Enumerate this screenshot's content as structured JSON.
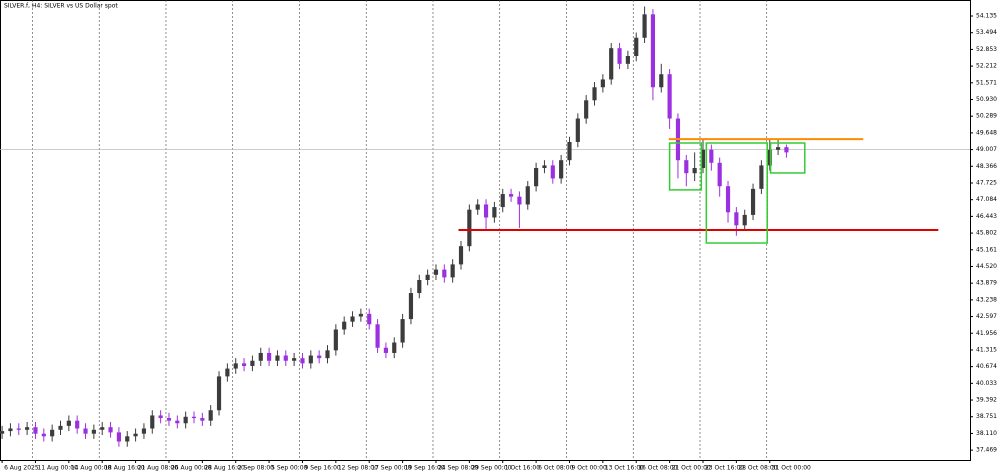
{
  "chart_data": {
    "type": "candlestick",
    "title": "SILVER.f, H4:  SILVER vs US Dollar spot",
    "bull_color": "#3c3c3c",
    "bear_color": "#9b30e0",
    "xlim": [
      -0.25,
      116
    ],
    "ylim": [
      37.09,
      54.75
    ],
    "xticks": [
      {
        "value": 0,
        "label": "6 Aug 2025"
      },
      {
        "value": 4,
        "label": "11 Aug 00:00"
      },
      {
        "value": 8,
        "label": "14 Aug 00:00"
      },
      {
        "value": 12,
        "label": "18 Aug 16:00"
      },
      {
        "value": 16,
        "label": "21 Aug 08:00"
      },
      {
        "value": 20,
        "label": "26 Aug 00:00"
      },
      {
        "value": 24,
        "label": "28 Aug 16:00"
      },
      {
        "value": 28,
        "label": "2 Sep 08:00"
      },
      {
        "value": 32,
        "label": "5 Sep 00:00"
      },
      {
        "value": 36,
        "label": "9 Sep 16:00"
      },
      {
        "value": 40,
        "label": "12 Sep 08:00"
      },
      {
        "value": 44,
        "label": "17 Sep 00:00"
      },
      {
        "value": 48,
        "label": "19 Sep 16:00"
      },
      {
        "value": 52,
        "label": "24 Sep 08:00"
      },
      {
        "value": 56,
        "label": "29 Sep 00:00"
      },
      {
        "value": 60,
        "label": "1 Oct 16:00"
      },
      {
        "value": 64,
        "label": "6 Oct 08:00"
      },
      {
        "value": 68,
        "label": "9 Oct 00:00"
      },
      {
        "value": 72,
        "label": "13 Oct 16:00"
      },
      {
        "value": 76,
        "label": "16 Oct 08:00"
      },
      {
        "value": 80,
        "label": "21 Oct 00:00"
      },
      {
        "value": 84,
        "label": "23 Oct 16:00"
      },
      {
        "value": 88,
        "label": "28 Oct 08:00"
      },
      {
        "value": 92,
        "label": "31 Oct 00:00"
      }
    ],
    "yticks": [
      54.135,
      53.494,
      52.853,
      52.212,
      51.571,
      {
        "value": 50.93,
        "label": "50.930"
      },
      50.289,
      49.648,
      49.007,
      48.366,
      47.725,
      47.084,
      46.443,
      45.802,
      45.161,
      {
        "value": 44.52,
        "label": "44.520"
      },
      43.879,
      43.238,
      42.597,
      41.956,
      41.315,
      40.674,
      40.033,
      39.392,
      38.751,
      {
        "value": 38.11,
        "label": "38.110"
      },
      37.469
    ],
    "bid_line": 49.007,
    "open": [
      38.1,
      38.2,
      38.3,
      38.25,
      38.35,
      38.1,
      38.0,
      38.25,
      38.4,
      38.6,
      38.3,
      38.1,
      38.25,
      38.35,
      38.15,
      37.8,
      38.0,
      38.1,
      38.3,
      38.8,
      38.7,
      38.6,
      38.5,
      38.75,
      38.7,
      38.6,
      39.0,
      40.3,
      40.6,
      40.8,
      40.7,
      40.9,
      41.2,
      40.9,
      41.1,
      40.9,
      41.0,
      40.8,
      41.1,
      41.0,
      41.3,
      42.1,
      42.4,
      42.6,
      42.7,
      42.3,
      41.4,
      41.2,
      41.6,
      42.5,
      43.5,
      44.0,
      44.2,
      44.4,
      44.1,
      44.6,
      45.3,
      46.7,
      46.9,
      46.4,
      46.8,
      47.3,
      47.2,
      46.9,
      47.6,
      48.3,
      48.4,
      47.9,
      48.6,
      49.3,
      50.2,
      50.9,
      51.4,
      51.7,
      52.9,
      52.3,
      52.6,
      53.3,
      54.2,
      51.4,
      51.9,
      50.2,
      48.6,
      48.1,
      48.3,
      49.0,
      48.5,
      47.6,
      46.6,
      46.1,
      46.5,
      47.5,
      48.4,
      49.0,
      49.1
    ],
    "high": [
      38.4,
      38.5,
      38.5,
      38.55,
      38.55,
      38.3,
      38.45,
      38.6,
      38.8,
      38.8,
      38.5,
      38.45,
      38.55,
      38.55,
      38.35,
      38.2,
      38.3,
      38.5,
      39.0,
      39.0,
      38.9,
      38.8,
      38.95,
      38.95,
      38.9,
      39.2,
      40.5,
      40.8,
      41.0,
      41.0,
      41.1,
      41.4,
      41.4,
      41.3,
      41.3,
      41.2,
      41.2,
      41.3,
      41.3,
      41.5,
      42.3,
      42.6,
      42.8,
      42.9,
      42.9,
      42.5,
      41.6,
      41.8,
      42.7,
      43.7,
      44.2,
      44.4,
      44.6,
      44.6,
      44.8,
      45.5,
      46.9,
      47.1,
      47.1,
      47.0,
      47.5,
      47.5,
      47.4,
      47.8,
      48.5,
      48.6,
      48.6,
      48.8,
      49.5,
      50.4,
      51.1,
      51.6,
      51.9,
      53.1,
      53.1,
      52.8,
      53.5,
      54.5,
      54.4,
      52.3,
      52.1,
      50.4,
      48.8,
      48.9,
      49.4,
      49.2,
      48.7,
      47.8,
      46.8,
      46.7,
      47.7,
      48.6,
      49.4,
      49.4,
      49.2
    ],
    "low": [
      37.9,
      38.0,
      38.05,
      38.05,
      37.9,
      37.8,
      37.8,
      38.05,
      38.2,
      38.1,
      37.9,
      37.9,
      38.05,
      37.95,
      37.6,
      37.6,
      37.8,
      37.9,
      38.1,
      38.5,
      38.4,
      38.3,
      38.3,
      38.5,
      38.4,
      38.4,
      38.8,
      40.1,
      40.4,
      40.5,
      40.5,
      40.7,
      40.7,
      40.7,
      40.7,
      40.7,
      40.6,
      40.6,
      40.8,
      40.8,
      41.1,
      41.9,
      42.2,
      42.4,
      42.1,
      41.2,
      41.0,
      41.0,
      41.4,
      42.3,
      43.3,
      43.8,
      44.0,
      43.9,
      43.9,
      44.4,
      45.1,
      46.5,
      45.9,
      46.2,
      46.6,
      47.0,
      46.0,
      46.7,
      47.4,
      48.1,
      47.7,
      47.7,
      48.4,
      49.1,
      50.0,
      50.7,
      51.2,
      51.5,
      52.1,
      52.1,
      52.4,
      53.1,
      50.9,
      51.2,
      49.8,
      47.9,
      47.6,
      47.8,
      48.1,
      48.2,
      47.2,
      46.2,
      45.7,
      45.9,
      46.3,
      47.3,
      48.2,
      48.8,
      48.7
    ],
    "close": [
      38.2,
      38.3,
      38.25,
      38.35,
      38.1,
      38.0,
      38.25,
      38.4,
      38.6,
      38.3,
      38.1,
      38.25,
      38.35,
      38.15,
      37.8,
      38.0,
      38.1,
      38.3,
      38.8,
      38.7,
      38.6,
      38.5,
      38.75,
      38.7,
      38.6,
      39.0,
      40.3,
      40.6,
      40.8,
      40.7,
      40.9,
      41.2,
      40.9,
      41.1,
      40.9,
      41.0,
      40.8,
      41.1,
      41.0,
      41.3,
      42.1,
      42.4,
      42.6,
      42.7,
      42.3,
      41.4,
      41.2,
      41.6,
      42.5,
      43.5,
      44.0,
      44.2,
      44.4,
      44.1,
      44.6,
      45.3,
      46.7,
      46.9,
      46.4,
      46.8,
      47.3,
      47.2,
      46.9,
      47.6,
      48.3,
      48.4,
      47.9,
      48.6,
      49.3,
      50.2,
      50.9,
      51.4,
      51.7,
      52.9,
      52.3,
      52.6,
      53.3,
      54.2,
      51.4,
      51.9,
      50.2,
      48.6,
      48.1,
      48.3,
      49.0,
      48.5,
      47.6,
      46.6,
      46.1,
      46.5,
      47.5,
      48.4,
      49.0,
      49.1,
      48.9
    ],
    "levels": [
      {
        "color": "#ff8c00",
        "value": 49.41,
        "x": [
          79.9,
          103.2
        ]
      },
      {
        "color": "#e00000",
        "value": 45.92,
        "x": [
          54.7,
          112.2
        ]
      }
    ],
    "boxes": [
      {
        "color": "#33cc33",
        "x": [
          80.0,
          83.8
        ],
        "y": [
          47.46,
          49.26
        ]
      },
      {
        "color": "#33cc33",
        "x": [
          84.4,
          91.7
        ],
        "y": [
          45.42,
          49.26
        ]
      },
      {
        "color": "#33cc33",
        "x": [
          92.1,
          96.2
        ],
        "y": [
          48.11,
          49.26
        ]
      }
    ]
  }
}
